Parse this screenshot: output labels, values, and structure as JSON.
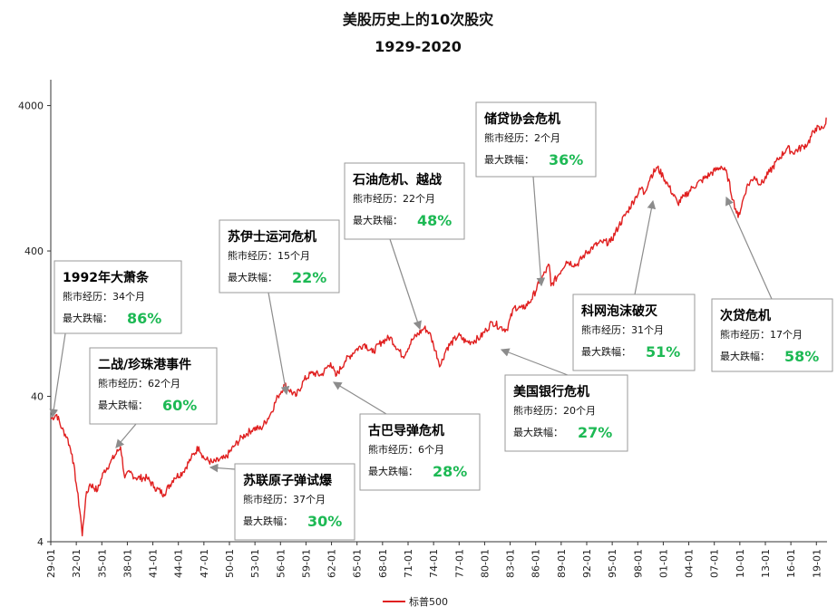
{
  "chart_data": {
    "type": "line",
    "title": "美股历史上的10次股灾",
    "subtitle": "1929-2020",
    "y_scale": "log",
    "ylim": [
      4,
      6000
    ],
    "y_ticks": [
      "4",
      "40",
      "400",
      "4000"
    ],
    "x_ticks": [
      "29-01",
      "32-01",
      "35-01",
      "38-01",
      "41-01",
      "44-01",
      "47-01",
      "50-01",
      "53-01",
      "56-01",
      "59-01",
      "62-01",
      "65-01",
      "68-01",
      "71-01",
      "74-01",
      "77-01",
      "80-01",
      "83-01",
      "86-01",
      "89-01",
      "92-01",
      "95-01",
      "98-01",
      "01-01",
      "04-01",
      "07-01",
      "10-01",
      "13-01",
      "16-01",
      "19-01"
    ],
    "series": [
      {
        "name": "标普500",
        "color": "#e02020",
        "x": [
          1929.0,
          1929.7,
          1930.3,
          1930.9,
          1931.5,
          1932.0,
          1932.5,
          1932.7,
          1933.1,
          1933.6,
          1934.5,
          1935.2,
          1936.0,
          1937.2,
          1937.7,
          1938.3,
          1939.0,
          1940.3,
          1941.2,
          1942.3,
          1943.5,
          1944.5,
          1945.5,
          1946.4,
          1947.0,
          1948.0,
          1949.5,
          1950.5,
          1951.5,
          1952.8,
          1953.7,
          1954.8,
          1955.7,
          1956.5,
          1957.8,
          1958.8,
          1959.7,
          1960.8,
          1961.9,
          1962.5,
          1963.6,
          1964.8,
          1965.9,
          1966.8,
          1967.9,
          1968.9,
          1970.4,
          1971.5,
          1972.9,
          1973.5,
          1974.0,
          1974.8,
          1975.5,
          1976.9,
          1977.8,
          1978.5,
          1979.5,
          1980.2,
          1980.9,
          1981.8,
          1982.6,
          1983.5,
          1984.5,
          1985.5,
          1986.4,
          1987.6,
          1987.8,
          1988.6,
          1989.6,
          1990.8,
          1991.8,
          1992.8,
          1993.8,
          1994.8,
          1995.8,
          1996.8,
          1997.8,
          1998.5,
          1998.7,
          1999.5,
          2000.3,
          2001.0,
          2001.7,
          2002.7,
          2003.5,
          2004.5,
          2005.5,
          2006.5,
          2007.8,
          2008.5,
          2009.2,
          2009.8,
          2010.8,
          2011.7,
          2012.5,
          2013.5,
          2014.5,
          2015.6,
          2016.2,
          2017.5,
          2018.0,
          2018.9,
          2019.5,
          2020.1,
          2020.2
        ],
        "values": [
          28,
          30,
          24,
          21,
          16,
          10,
          6,
          4.4,
          8,
          10,
          9,
          12,
          14,
          18,
          11,
          12,
          11,
          11,
          9.5,
          8.5,
          11,
          12,
          15,
          18,
          15,
          14,
          15,
          18,
          21,
          24,
          24,
          30,
          40,
          48,
          40,
          52,
          58,
          56,
          68,
          55,
          70,
          83,
          92,
          80,
          95,
          102,
          75,
          98,
          118,
          110,
          90,
          65,
          85,
          105,
          95,
          95,
          102,
          115,
          130,
          120,
          115,
          165,
          160,
          185,
          240,
          320,
          230,
          270,
          340,
          320,
          380,
          430,
          460,
          460,
          600,
          750,
          950,
          1100,
          980,
          1300,
          1500,
          1300,
          1100,
          850,
          950,
          1100,
          1220,
          1350,
          1530,
          1350,
          900,
          680,
          1100,
          1300,
          1150,
          1400,
          1700,
          2050,
          1900,
          2100,
          2200,
          2800,
          2750,
          3000,
          3300
        ]
      }
    ],
    "annotations": [
      {
        "title": "1992年大萧条",
        "line1": "熊市经历：34个月",
        "pct_label": "最大跌幅：",
        "pct": "86%"
      },
      {
        "title": "二战/珍珠港事件",
        "line1": "熊市经历：62个月",
        "pct_label": "最大跌幅：",
        "pct": "60%"
      },
      {
        "title": "苏伊士运河危机",
        "line1": "熊市经历：15个月",
        "pct_label": "最大跌幅：",
        "pct": "22%"
      },
      {
        "title": "苏联原子弹试爆",
        "line1": "熊市经历：37个月",
        "pct_label": "最大跌幅：",
        "pct": "30%"
      },
      {
        "title": "石油危机、越战",
        "line1": "熊市经历：22个月",
        "pct_label": "最大跌幅：",
        "pct": "48%"
      },
      {
        "title": "古巴导弹危机",
        "line1": "熊市经历：6个月",
        "pct_label": "最大跌幅：",
        "pct": "28%"
      },
      {
        "title": "储贷协会危机",
        "line1": "熊市经历：2个月",
        "pct_label": "最大跌幅：",
        "pct": "36%"
      },
      {
        "title": "美国银行危机",
        "line1": "熊市经历：20个月",
        "pct_label": "最大跌幅：",
        "pct": "27%"
      },
      {
        "title": "科网泡沫破灭",
        "line1": "熊市经历：31个月",
        "pct_label": "最大跌幅：",
        "pct": "51%"
      },
      {
        "title": "次贷危机",
        "line1": "熊市经历：17个月",
        "pct_label": "最大跌幅：",
        "pct": "58%"
      }
    ],
    "legend_position": "bottom-center",
    "grid": false
  }
}
